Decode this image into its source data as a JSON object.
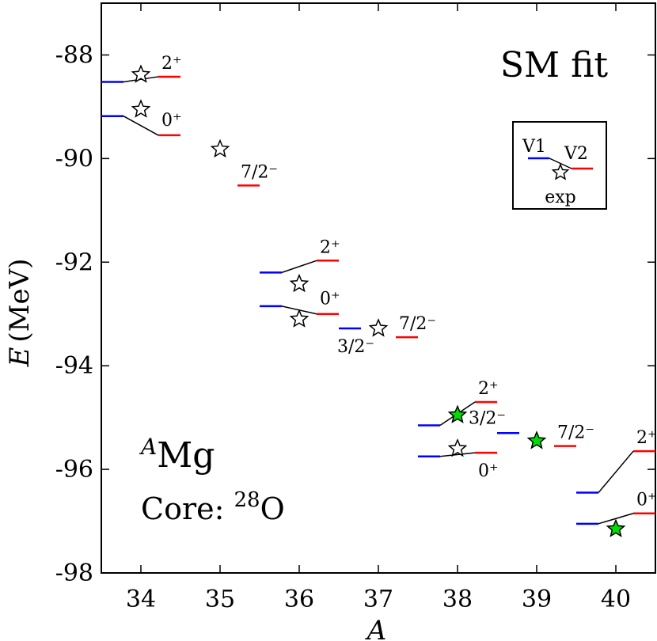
{
  "chart_data": {
    "type": "level-scheme",
    "title": "SM fit",
    "xlabel": "A",
    "ylabel_italic": "E",
    "ylabel_unit": "(MeV)",
    "xlim": [
      33.5,
      40.5
    ],
    "ylim": [
      -98,
      -87
    ],
    "xticks": [
      34,
      35,
      36,
      37,
      38,
      39,
      40
    ],
    "yticks": [
      -98,
      -96,
      -94,
      -92,
      -90,
      -88
    ],
    "nucleus": {
      "mass_symbol": "A",
      "element": "Mg"
    },
    "core": {
      "label": "Core: ",
      "mass": "28",
      "element": "O"
    },
    "legend": {
      "v1": "V1",
      "v2": "V2",
      "exp": "exp"
    },
    "colors": {
      "v1": "#0000ff",
      "v2": "#ff0000",
      "connector": "#000000",
      "star_open": "#ffffff",
      "star_filled": "#00dd00"
    },
    "levels": [
      {
        "A": 34,
        "label": "2⁺",
        "v1": -88.52,
        "v2": -88.42,
        "exp": -88.38,
        "exp_filled": false,
        "label_side": "v2"
      },
      {
        "A": 34,
        "label": "0⁺",
        "v1": -89.18,
        "v2": -89.55,
        "exp": -89.05,
        "exp_filled": false,
        "label_side": "v2"
      },
      {
        "A": 35,
        "label": "7/2⁻",
        "v1": null,
        "v2": -90.52,
        "exp": -89.82,
        "exp_filled": false,
        "label_side": "v2"
      },
      {
        "A": 36,
        "label": "2⁺",
        "v1": -92.2,
        "v2": -91.97,
        "exp": -92.42,
        "exp_filled": false,
        "label_side": "v2"
      },
      {
        "A": 36,
        "label": "0⁺",
        "v1": -92.85,
        "v2": -93.0,
        "exp": -93.1,
        "exp_filled": false,
        "label_side": "v2"
      },
      {
        "A": 37,
        "label": "3/2⁻",
        "v1": -93.28,
        "v2": null,
        "exp": null,
        "exp_filled": false,
        "label_side": "v1"
      },
      {
        "A": 37,
        "label": "7/2⁻",
        "v1": null,
        "v2": -93.45,
        "exp": -93.28,
        "exp_filled": false,
        "label_side": "v2"
      },
      {
        "A": 38,
        "label": "2⁺",
        "v1": -95.15,
        "v2": -94.7,
        "exp": -94.95,
        "exp_filled": true,
        "label_side": "v2"
      },
      {
        "A": 38,
        "label": "0⁺",
        "v1": -95.75,
        "v2": -95.68,
        "exp": -95.6,
        "exp_filled": false,
        "label_side": "v2"
      },
      {
        "A": 39,
        "label": "3/2⁻",
        "v1": -95.3,
        "v2": null,
        "exp": null,
        "exp_filled": false,
        "label_side": "v1"
      },
      {
        "A": 39,
        "label": "7/2⁻",
        "v1": null,
        "v2": -95.55,
        "exp": -95.45,
        "exp_filled": true,
        "label_side": "v2"
      },
      {
        "A": 40,
        "label": "2⁺",
        "v1": -96.45,
        "v2": -95.65,
        "exp": null,
        "exp_filled": false,
        "label_side": "v2"
      },
      {
        "A": 40,
        "label": "0⁺",
        "v1": -97.05,
        "v2": -96.85,
        "exp": -97.15,
        "exp_filled": true,
        "label_side": "v2"
      }
    ]
  }
}
